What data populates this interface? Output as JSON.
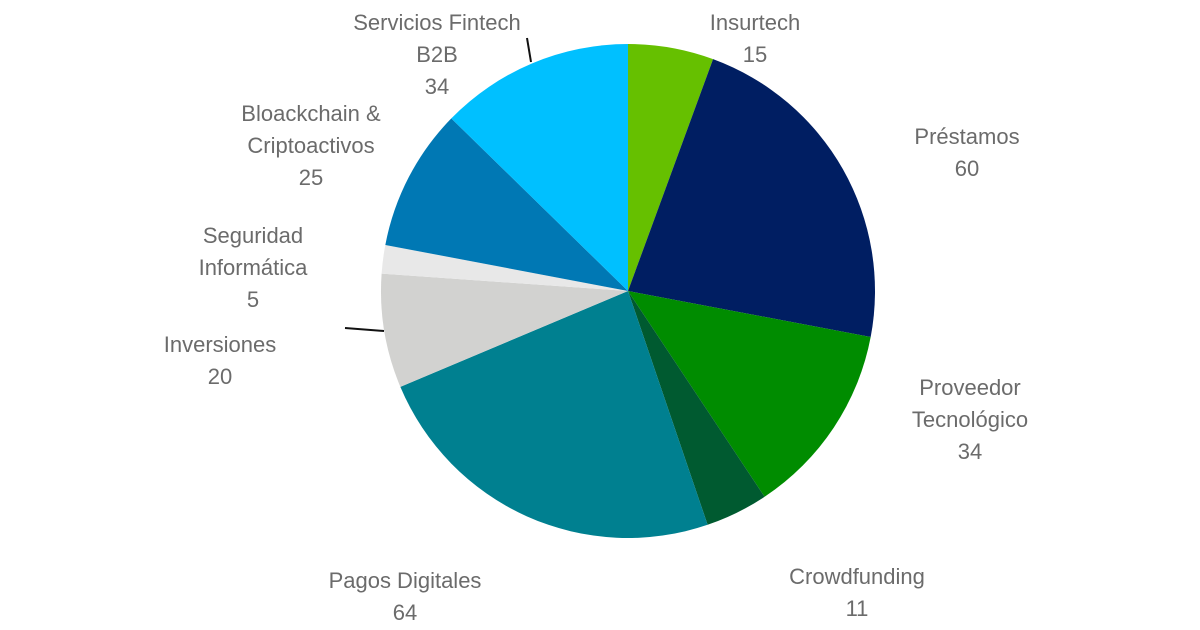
{
  "chart_data": {
    "type": "pie",
    "slices": [
      {
        "label": "Insurtech",
        "value": 15,
        "color": "#66c000"
      },
      {
        "label": "Préstamos",
        "value": 60,
        "color": "#001e62"
      },
      {
        "label": "Proveedor Tecnológico",
        "value": 34,
        "color": "#008c00"
      },
      {
        "label": "Crowdfunding",
        "value": 11,
        "color": "#005a30"
      },
      {
        "label": "Pagos Digitales",
        "value": 64,
        "color": "#008090"
      },
      {
        "label": "Inversiones",
        "value": 20,
        "color": "#d2d2d0"
      },
      {
        "label": "Seguridad Informática",
        "value": 5,
        "color": "#e8e8e8"
      },
      {
        "label": "Bloackchain & Criptoactivos",
        "value": 25,
        "color": "#0078b4"
      },
      {
        "label": "Servicios Fintech B2B",
        "value": 34,
        "color": "#00c0ff"
      }
    ],
    "label_lines": [
      [
        "Insurtech",
        "15"
      ],
      [
        "Préstamos",
        "60"
      ],
      [
        "Proveedor",
        "Tecnológico",
        "34"
      ],
      [
        "Crowdfunding",
        "11"
      ],
      [
        "Pagos Digitales",
        "64"
      ],
      [
        "Inversiones",
        "20"
      ],
      [
        "Seguridad",
        "Informática",
        "5"
      ],
      [
        "Bloackchain &",
        "Criptoactivos",
        "25"
      ],
      [
        "Servicios Fintech",
        "B2B",
        "34"
      ]
    ]
  }
}
